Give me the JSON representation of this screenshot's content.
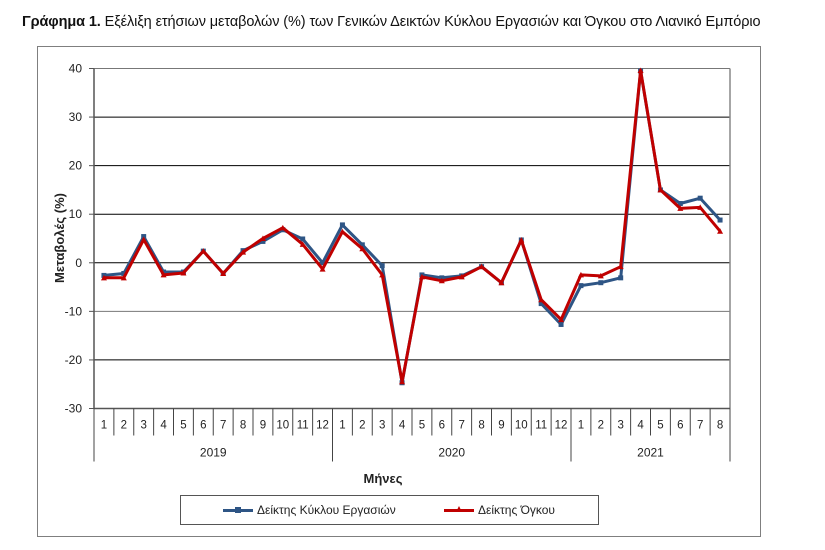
{
  "title": {
    "bold": "Γράφημα 1.",
    "text": " Εξέλιξη ετήσιων μεταβολών (%) των Γενικών Δεικτών Κύκλου Εργασιών και Όγκου στο Λιανικό Εμπόριο"
  },
  "colors": {
    "turnover": "#2e5585",
    "volume": "#c00000",
    "grid": "#000000",
    "axis": "#6f6f6f"
  },
  "chart_data": {
    "type": "line",
    "title": "Γράφημα 1. Εξέλιξη ετήσιων μεταβολών (%) των Γενικών Δεικτών Κύκλου Εργασιών και Όγκου στο Λιανικό Εμπόριο",
    "xlabel": "Μήνες",
    "ylabel": "Μεταβολές (%)",
    "ylim": [
      -30,
      40
    ],
    "yticks": [
      -30,
      -20,
      -10,
      0,
      10,
      20,
      30,
      40
    ],
    "grid": true,
    "legend_position": "bottom",
    "categories": [
      "1",
      "2",
      "3",
      "4",
      "5",
      "6",
      "7",
      "8",
      "9",
      "10",
      "11",
      "12",
      "1",
      "2",
      "3",
      "4",
      "5",
      "6",
      "7",
      "8",
      "9",
      "10",
      "11",
      "12",
      "1",
      "2",
      "3",
      "4",
      "5",
      "6",
      "7",
      "8"
    ],
    "year_groups": [
      {
        "label": "2019",
        "count": 12
      },
      {
        "label": "2020",
        "count": 12
      },
      {
        "label": "2021",
        "count": 8
      }
    ],
    "series": [
      {
        "name": "Δείκτης Κύκλου Εργασιών",
        "color": "#2e5585",
        "marker": "square",
        "values": [
          -2.6,
          -2.2,
          5.4,
          -1.9,
          -1.9,
          2.4,
          -2.2,
          2.5,
          4.4,
          6.8,
          4.9,
          0.0,
          7.8,
          3.7,
          -0.6,
          -24.7,
          -2.5,
          -3.1,
          -2.7,
          -0.8,
          -4.1,
          4.7,
          -8.4,
          -12.7,
          -4.7,
          -4.1,
          -3.1,
          39.5,
          15.0,
          12.2,
          13.3,
          8.8
        ]
      },
      {
        "name": "Δείκτης Όγκου",
        "color": "#c00000",
        "marker": "triangle",
        "values": [
          -3.1,
          -3.1,
          4.8,
          -2.5,
          -2.1,
          2.4,
          -2.2,
          2.2,
          5.0,
          7.2,
          3.8,
          -1.3,
          6.4,
          2.9,
          -2.5,
          -24.5,
          -2.9,
          -3.7,
          -2.9,
          -0.8,
          -4.1,
          4.7,
          -7.6,
          -11.7,
          -2.5,
          -2.7,
          -0.8,
          39.6,
          15.0,
          11.2,
          11.4,
          6.5
        ]
      }
    ]
  },
  "legend": {
    "items": [
      {
        "label": "Δείκτης Κύκλου Εργασιών"
      },
      {
        "label": "Δείκτης Όγκου"
      }
    ]
  }
}
